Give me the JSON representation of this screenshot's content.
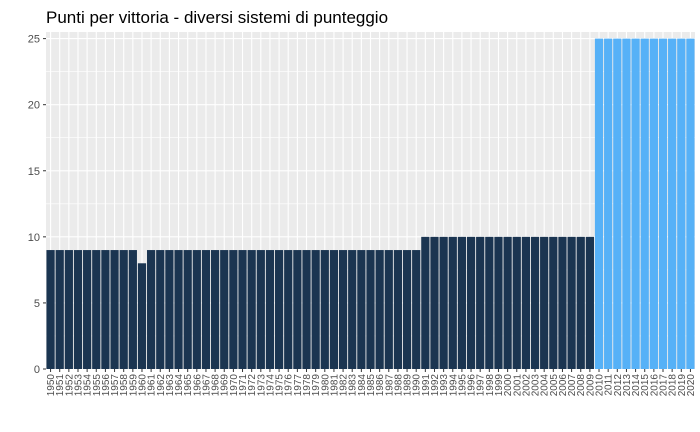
{
  "chart_data": {
    "type": "bar",
    "title": "Punti per vittoria - diversi sistemi di punteggio",
    "xlabel": "",
    "ylabel": "",
    "ylim": [
      0,
      25.5
    ],
    "yticks": [
      0,
      5,
      10,
      15,
      20,
      25
    ],
    "grid": true,
    "legend": "none",
    "colors": {
      "dark": "#1b3551",
      "light": "#56b1f7",
      "panel": "#ebebeb",
      "grid": "#ffffff"
    },
    "categories": [
      "1950",
      "1951",
      "1952",
      "1953",
      "1954",
      "1955",
      "1956",
      "1957",
      "1958",
      "1959",
      "1960",
      "1961",
      "1962",
      "1963",
      "1964",
      "1965",
      "1966",
      "1967",
      "1968",
      "1969",
      "1970",
      "1971",
      "1972",
      "1973",
      "1974",
      "1975",
      "1976",
      "1977",
      "1978",
      "1979",
      "1980",
      "1981",
      "1982",
      "1983",
      "1984",
      "1985",
      "1986",
      "1987",
      "1988",
      "1989",
      "1990",
      "1991",
      "1992",
      "1993",
      "1994",
      "1995",
      "1996",
      "1997",
      "1998",
      "1999",
      "2000",
      "2001",
      "2002",
      "2003",
      "2004",
      "2005",
      "2006",
      "2007",
      "2008",
      "2009",
      "2010",
      "2011",
      "2012",
      "2013",
      "2014",
      "2015",
      "2016",
      "2017",
      "2018",
      "2019",
      "2020"
    ],
    "values": [
      9,
      9,
      9,
      9,
      9,
      9,
      9,
      9,
      9,
      9,
      8,
      9,
      9,
      9,
      9,
      9,
      9,
      9,
      9,
      9,
      9,
      9,
      9,
      9,
      9,
      9,
      9,
      9,
      9,
      9,
      9,
      9,
      9,
      9,
      9,
      9,
      9,
      9,
      9,
      9,
      9,
      10,
      10,
      10,
      10,
      10,
      10,
      10,
      10,
      10,
      10,
      10,
      10,
      10,
      10,
      10,
      10,
      10,
      10,
      10,
      25,
      25,
      25,
      25,
      25,
      25,
      25,
      25,
      25,
      25,
      25
    ]
  }
}
